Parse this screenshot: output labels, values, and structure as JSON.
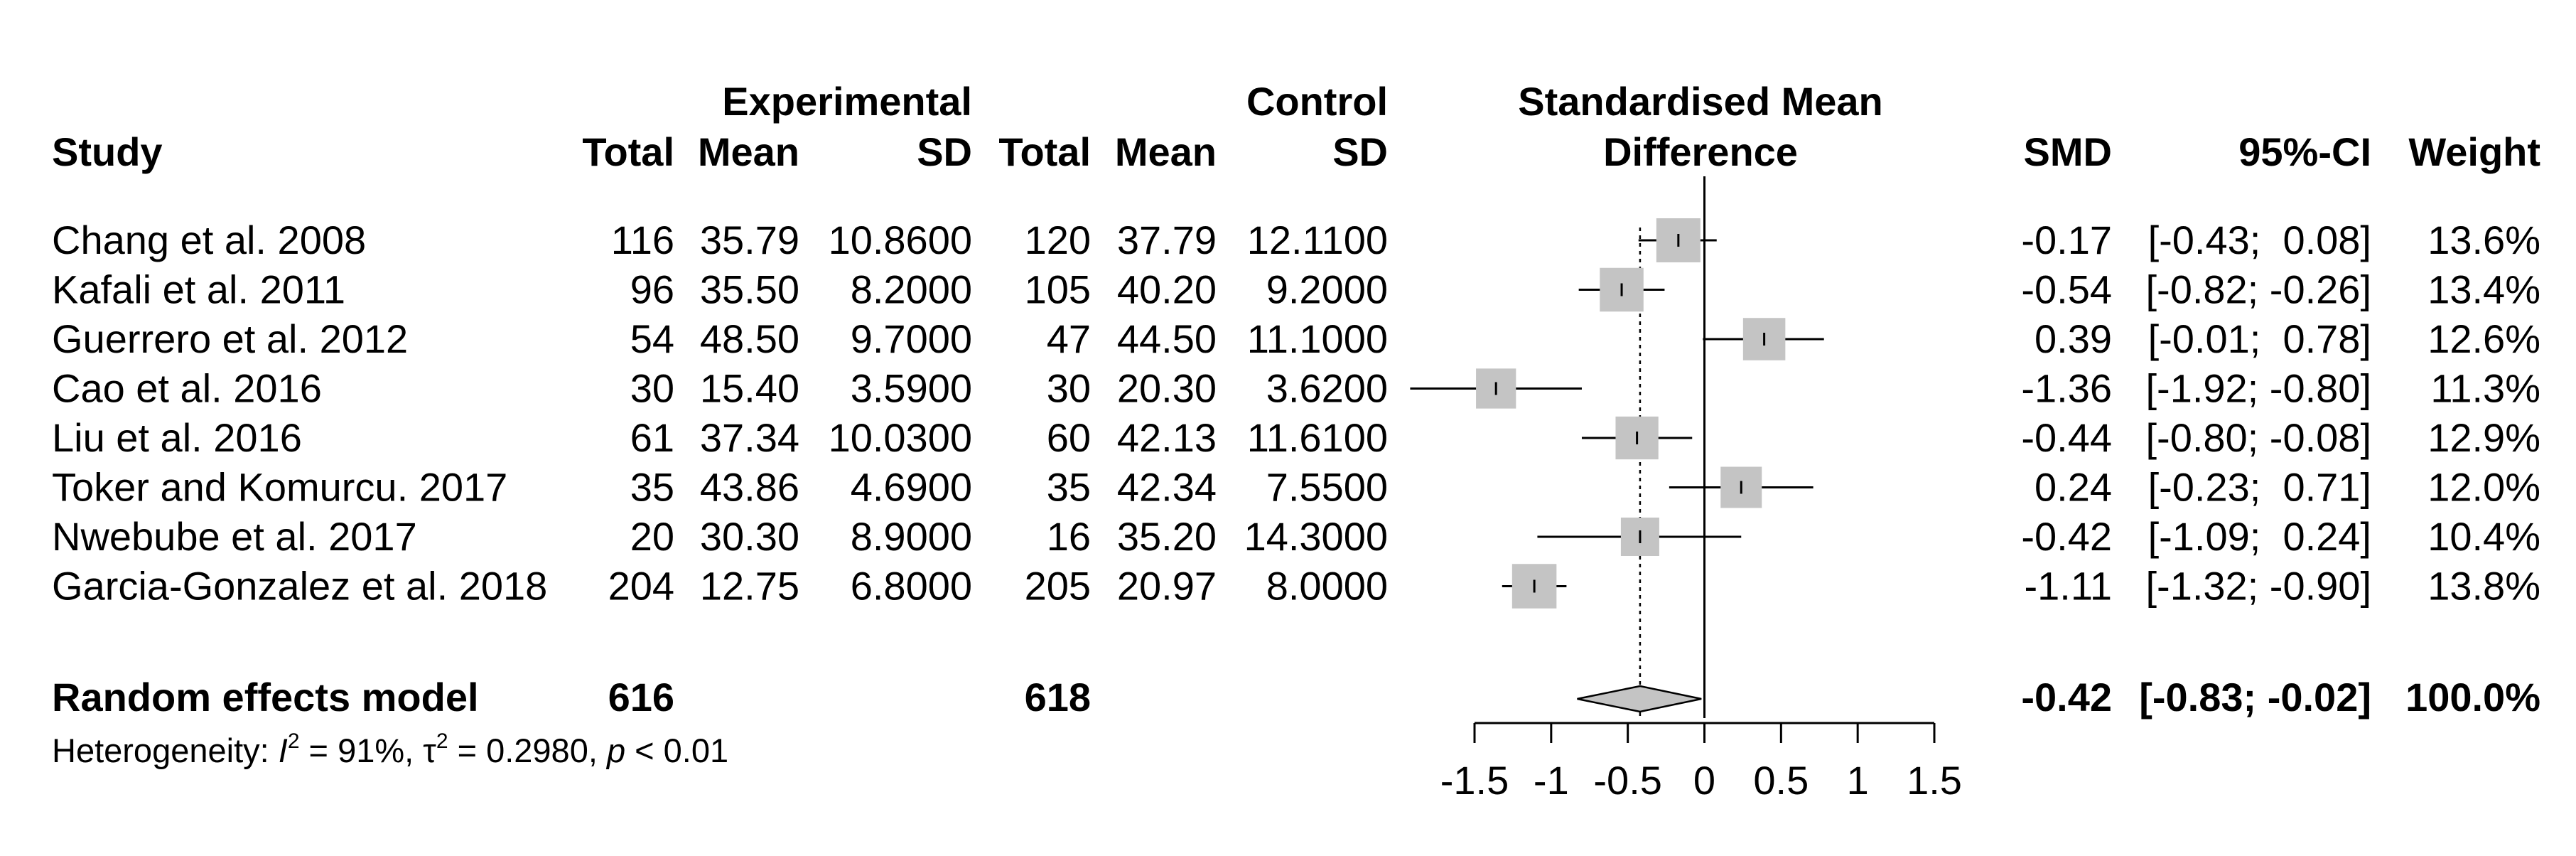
{
  "chart_data": {
    "type": "forest",
    "headers": {
      "study": "Study",
      "experimental_group": "Experimental",
      "control_group": "Control",
      "total": "Total",
      "mean": "Mean",
      "sd": "SD",
      "effect_line1": "Standardised Mean",
      "effect_line2": "Difference",
      "smd": "SMD",
      "ci": "95%-CI",
      "weight": "Weight"
    },
    "studies": [
      {
        "study": "Chang et al. 2008",
        "e_total": "116",
        "e_mean": "35.79",
        "e_sd": "10.8600",
        "c_total": "120",
        "c_mean": "37.79",
        "c_sd": "12.1100",
        "smd": -0.17,
        "lower": -0.43,
        "upper": 0.08,
        "weight": 13.6,
        "smd_text": "-0.17",
        "ci_text": "[-0.43;  0.08]",
        "weight_text": "13.6%"
      },
      {
        "study": "Kafali et al. 2011",
        "e_total": "96",
        "e_mean": "35.50",
        "e_sd": "8.2000",
        "c_total": "105",
        "c_mean": "40.20",
        "c_sd": "9.2000",
        "smd": -0.54,
        "lower": -0.82,
        "upper": -0.26,
        "weight": 13.4,
        "smd_text": "-0.54",
        "ci_text": "[-0.82; -0.26]",
        "weight_text": "13.4%"
      },
      {
        "study": "Guerrero et al. 2012",
        "e_total": "54",
        "e_mean": "48.50",
        "e_sd": "9.7000",
        "c_total": "47",
        "c_mean": "44.50",
        "c_sd": "11.1000",
        "smd": 0.39,
        "lower": -0.01,
        "upper": 0.78,
        "weight": 12.6,
        "smd_text": "0.39",
        "ci_text": "[-0.01;  0.78]",
        "weight_text": "12.6%"
      },
      {
        "study": "Cao et al. 2016",
        "e_total": "30",
        "e_mean": "15.40",
        "e_sd": "3.5900",
        "c_total": "30",
        "c_mean": "20.30",
        "c_sd": "3.6200",
        "smd": -1.36,
        "lower": -1.92,
        "upper": -0.8,
        "weight": 11.3,
        "smd_text": "-1.36",
        "ci_text": "[-1.92; -0.80]",
        "weight_text": "11.3%"
      },
      {
        "study": "Liu et al. 2016",
        "e_total": "61",
        "e_mean": "37.34",
        "e_sd": "10.0300",
        "c_total": "60",
        "c_mean": "42.13",
        "c_sd": "11.6100",
        "smd": -0.44,
        "lower": -0.8,
        "upper": -0.08,
        "weight": 12.9,
        "smd_text": "-0.44",
        "ci_text": "[-0.80; -0.08]",
        "weight_text": "12.9%"
      },
      {
        "study": "Toker and Komurcu. 2017",
        "e_total": "35",
        "e_mean": "43.86",
        "e_sd": "4.6900",
        "c_total": "35",
        "c_mean": "42.34",
        "c_sd": "7.5500",
        "smd": 0.24,
        "lower": -0.23,
        "upper": 0.71,
        "weight": 12.0,
        "smd_text": "0.24",
        "ci_text": "[-0.23;  0.71]",
        "weight_text": "12.0%"
      },
      {
        "study": "Nwebube et al. 2017",
        "e_total": "20",
        "e_mean": "30.30",
        "e_sd": "8.9000",
        "c_total": "16",
        "c_mean": "35.20",
        "c_sd": "14.3000",
        "smd": -0.42,
        "lower": -1.09,
        "upper": 0.24,
        "weight": 10.4,
        "smd_text": "-0.42",
        "ci_text": "[-1.09;  0.24]",
        "weight_text": "10.4%"
      },
      {
        "study": "Garcia-Gonzalez et al. 2018",
        "e_total": "204",
        "e_mean": "12.75",
        "e_sd": "6.8000",
        "c_total": "205",
        "c_mean": "20.97",
        "c_sd": "8.0000",
        "smd": -1.11,
        "lower": -1.32,
        "upper": -0.9,
        "weight": 13.8,
        "smd_text": "-1.11",
        "ci_text": "[-1.32; -0.90]",
        "weight_text": "13.8%"
      }
    ],
    "pooled": {
      "label": "Random effects model",
      "e_total": "616",
      "c_total": "618",
      "smd": -0.42,
      "lower": -0.83,
      "upper": -0.02,
      "weight": 100.0,
      "smd_text": "-0.42",
      "ci_text": "[-0.83; -0.02]",
      "weight_text": "100.0%"
    },
    "heterogeneity": {
      "prefix": "Heterogeneity: ",
      "i2_symbol": "I",
      "i2_sup": "2",
      "i2_value": " = 91%, ",
      "tau_symbol": "τ",
      "tau_sup": "2",
      "tau_value": " = 0.2980, ",
      "p_symbol": "p",
      "p_value": " < 0.01"
    },
    "x_axis": {
      "range": [
        -1.5,
        1.5
      ],
      "ticks": [
        -1.5,
        -1,
        -0.5,
        0,
        0.5,
        1,
        1.5
      ],
      "tick_labels": [
        "-1.5",
        "-1",
        "-0.5",
        "0",
        "0.5",
        "1",
        "1.5"
      ],
      "reference_line": 0,
      "pooled_line": -0.42
    }
  }
}
